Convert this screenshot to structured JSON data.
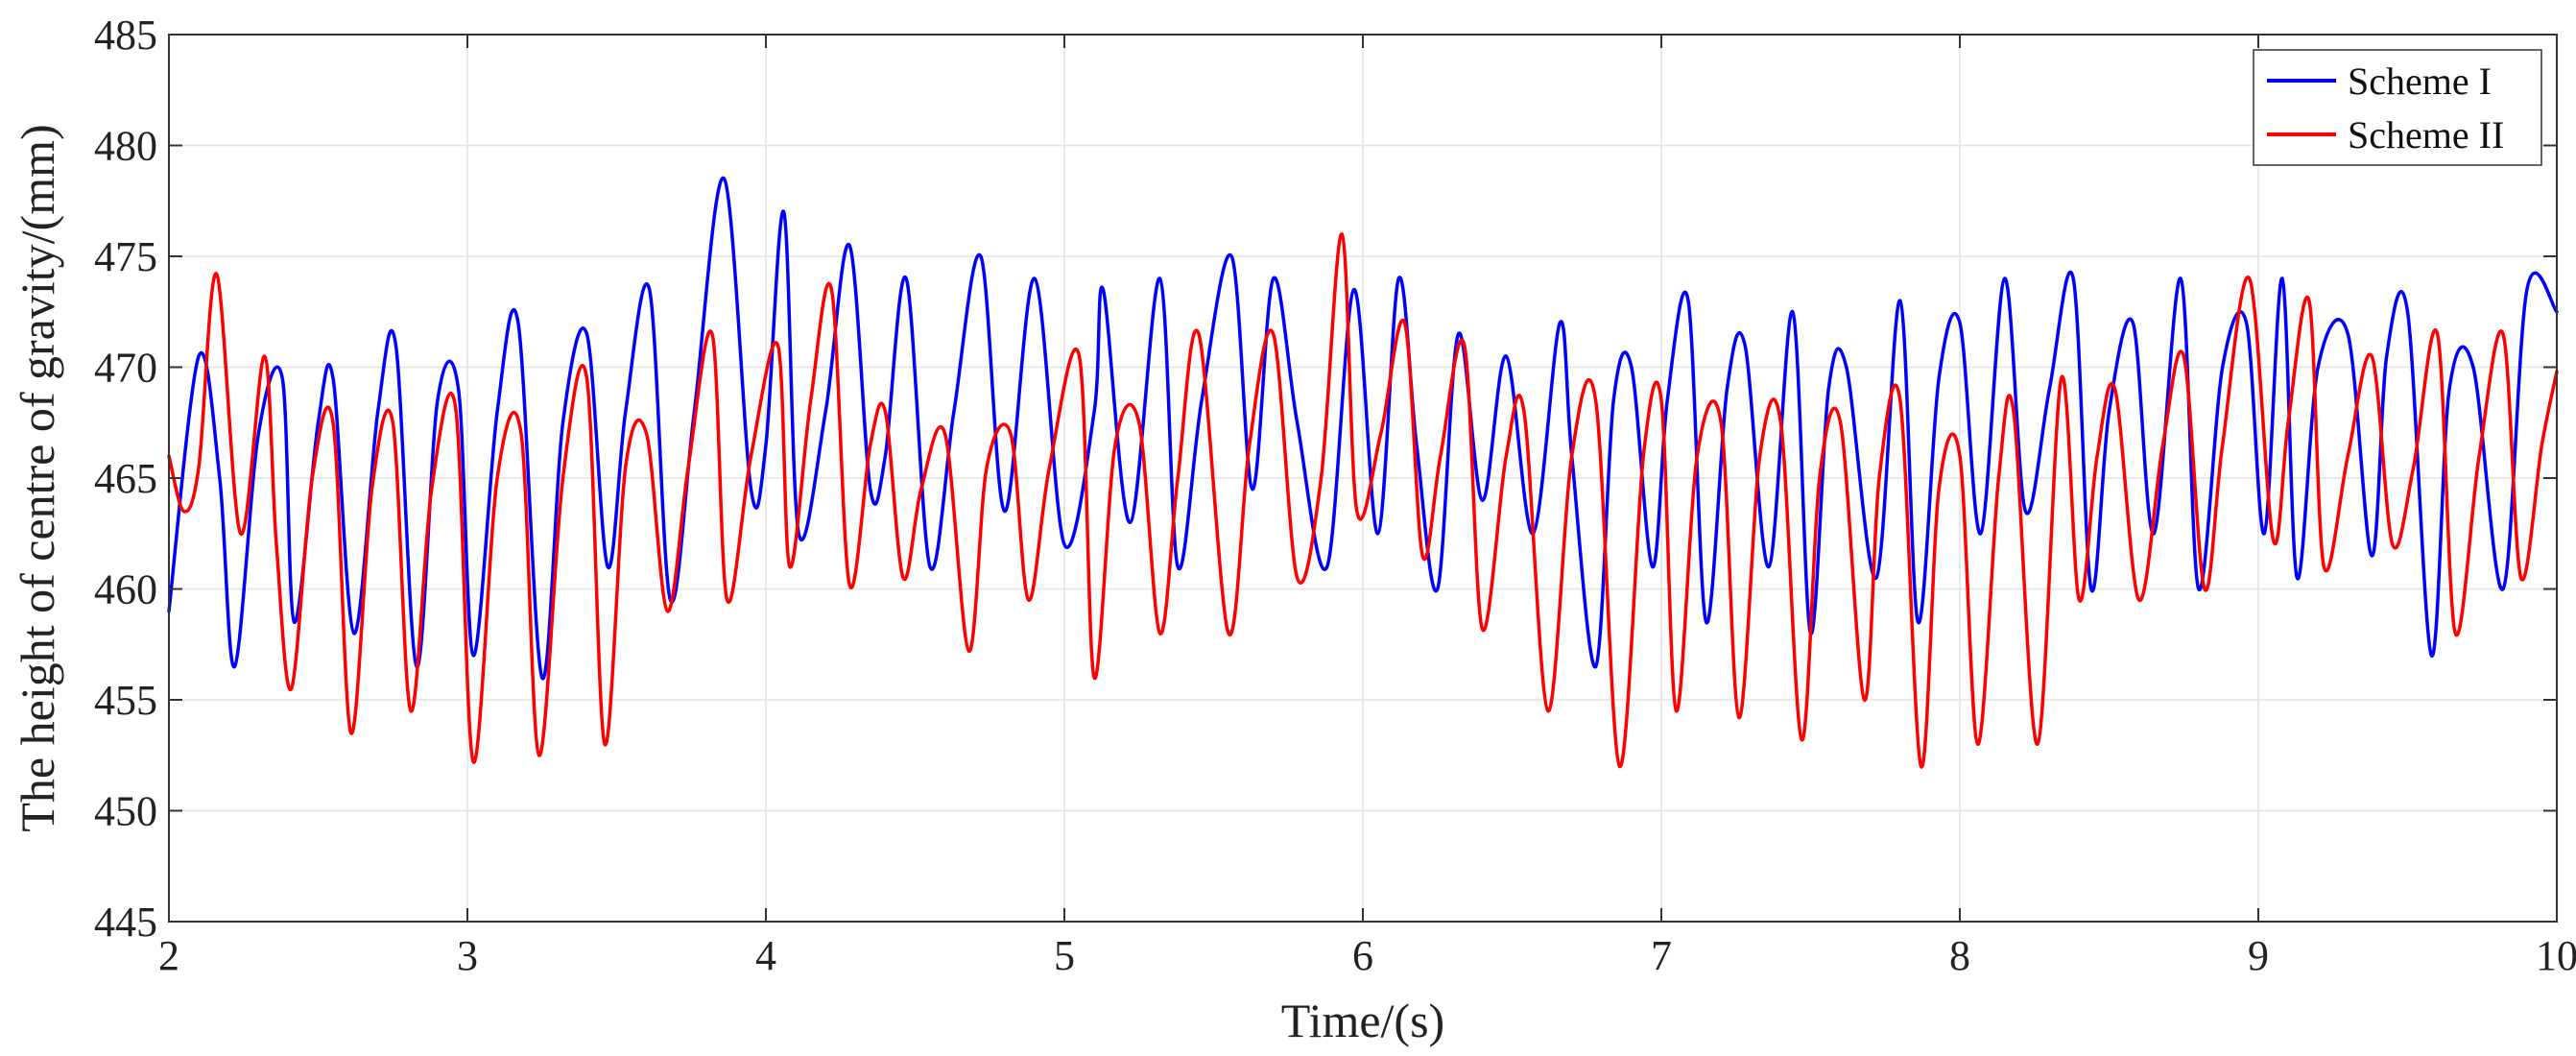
{
  "chart_data": {
    "type": "line",
    "title": "",
    "xlabel": "Time/(s)",
    "ylabel": "The height of centre of gravity/(mm)",
    "xlim": [
      2,
      10
    ],
    "ylim": [
      445,
      485
    ],
    "xticks": [
      2,
      3,
      4,
      5,
      6,
      7,
      8,
      9,
      10
    ],
    "yticks": [
      445,
      450,
      455,
      460,
      465,
      470,
      475,
      480,
      485
    ],
    "grid": true,
    "legend_position": "top-right",
    "colors": {
      "scheme_1": "#0000ff",
      "scheme_2": "#ff0000"
    },
    "series": [
      {
        "name": "Scheme I",
        "color": "#0000ff",
        "x": [
          2.0,
          2.1,
          2.17,
          2.22,
          2.3,
          2.38,
          2.42,
          2.5,
          2.55,
          2.62,
          2.7,
          2.76,
          2.83,
          2.9,
          2.97,
          3.02,
          3.1,
          3.17,
          3.25,
          3.32,
          3.4,
          3.47,
          3.53,
          3.61,
          3.68,
          3.76,
          3.86,
          3.95,
          4.0,
          4.06,
          4.11,
          4.2,
          4.28,
          4.35,
          4.4,
          4.47,
          4.55,
          4.63,
          4.72,
          4.8,
          4.9,
          5.0,
          5.1,
          5.13,
          5.22,
          5.32,
          5.38,
          5.46,
          5.56,
          5.63,
          5.7,
          5.78,
          5.88,
          5.97,
          6.05,
          6.12,
          6.18,
          6.25,
          6.32,
          6.4,
          6.48,
          6.57,
          6.66,
          6.7,
          6.78,
          6.84,
          6.9,
          6.97,
          7.02,
          7.09,
          7.15,
          7.22,
          7.28,
          7.36,
          7.44,
          7.5,
          7.56,
          7.62,
          7.72,
          7.8,
          7.86,
          7.93,
          8.0,
          8.07,
          8.15,
          8.22,
          8.3,
          8.38,
          8.44,
          8.5,
          8.58,
          8.65,
          8.74,
          8.8,
          8.88,
          8.96,
          9.02,
          9.08,
          9.13,
          9.2,
          9.3,
          9.38,
          9.43,
          9.5,
          9.58,
          9.64,
          9.72,
          9.82,
          9.9,
          10.0
        ],
        "values": [
          459.0,
          470.5,
          465.0,
          456.5,
          467.0,
          469.5,
          458.5,
          467.5,
          469.5,
          458.0,
          468.0,
          471.0,
          456.5,
          468.5,
          469.0,
          457.0,
          468.0,
          472.0,
          456.0,
          467.5,
          471.5,
          461.0,
          468.0,
          473.5,
          459.5,
          468.0,
          478.5,
          464.5,
          466.5,
          477.0,
          462.5,
          468.0,
          475.5,
          464.5,
          466.0,
          474.0,
          461.0,
          468.0,
          475.0,
          463.5,
          474.0,
          462.0,
          468.0,
          473.5,
          463.0,
          474.0,
          461.0,
          468.5,
          475.0,
          464.5,
          474.0,
          467.5,
          461.0,
          473.5,
          462.5,
          474.0,
          466.5,
          460.0,
          471.5,
          464.0,
          470.5,
          462.5,
          472.0,
          466.0,
          456.5,
          468.5,
          470.0,
          461.0,
          468.5,
          473.0,
          458.5,
          469.0,
          471.0,
          461.0,
          472.5,
          458.0,
          469.0,
          470.0,
          460.5,
          473.0,
          458.5,
          469.5,
          472.0,
          462.5,
          474.0,
          463.5,
          469.0,
          474.0,
          460.0,
          468.0,
          472.0,
          462.5,
          474.0,
          460.0,
          470.0,
          472.0,
          462.5,
          474.0,
          460.5,
          470.0,
          471.5,
          461.5,
          470.5,
          472.5,
          457.0,
          469.0,
          470.0,
          460.0,
          473.5,
          472.5
        ]
      },
      {
        "name": "Scheme II",
        "color": "#ff0000",
        "x": [
          2.0,
          2.05,
          2.1,
          2.16,
          2.24,
          2.32,
          2.36,
          2.41,
          2.48,
          2.55,
          2.61,
          2.68,
          2.75,
          2.81,
          2.88,
          2.96,
          3.02,
          3.1,
          3.18,
          3.24,
          3.32,
          3.4,
          3.46,
          3.53,
          3.6,
          3.67,
          3.74,
          3.82,
          3.87,
          3.95,
          4.04,
          4.08,
          4.15,
          4.22,
          4.28,
          4.35,
          4.4,
          4.46,
          4.52,
          4.6,
          4.68,
          4.74,
          4.82,
          4.88,
          4.95,
          5.05,
          5.1,
          5.17,
          5.25,
          5.32,
          5.38,
          5.45,
          5.55,
          5.62,
          5.7,
          5.78,
          5.86,
          5.93,
          5.98,
          6.06,
          6.14,
          6.2,
          6.26,
          6.34,
          6.4,
          6.48,
          6.54,
          6.62,
          6.7,
          6.78,
          6.86,
          6.94,
          7.0,
          7.05,
          7.12,
          7.2,
          7.26,
          7.33,
          7.4,
          7.47,
          7.53,
          7.6,
          7.68,
          7.73,
          7.8,
          7.87,
          7.93,
          8.0,
          8.06,
          8.13,
          8.18,
          8.26,
          8.34,
          8.4,
          8.46,
          8.52,
          8.6,
          8.68,
          8.75,
          8.82,
          8.88,
          8.97,
          9.05,
          9.1,
          9.17,
          9.22,
          9.3,
          9.38,
          9.45,
          9.52,
          9.6,
          9.66,
          9.74,
          9.82,
          9.88,
          9.95,
          10.0
        ],
        "values": [
          466.0,
          463.5,
          465.5,
          474.2,
          462.5,
          470.5,
          462.0,
          455.5,
          465.0,
          467.5,
          453.5,
          464.5,
          467.5,
          454.5,
          464.5,
          468.2,
          452.2,
          465.0,
          467.0,
          452.5,
          465.0,
          469.5,
          453.0,
          465.5,
          467.0,
          459.0,
          465.5,
          471.5,
          459.5,
          466.0,
          471.0,
          461.0,
          468.5,
          473.5,
          460.2,
          466.5,
          468.0,
          460.5,
          464.5,
          467.0,
          457.2,
          465.5,
          467.0,
          459.5,
          465.5,
          470.5,
          456.0,
          466.5,
          467.5,
          458.0,
          465.0,
          471.5,
          458.0,
          466.5,
          471.5,
          460.5,
          465.0,
          476.0,
          463.5,
          467.0,
          472.0,
          461.5,
          466.0,
          471.0,
          458.2,
          466.0,
          468.0,
          454.5,
          466.0,
          468.5,
          452.0,
          466.0,
          468.5,
          454.5,
          466.0,
          467.5,
          454.2,
          466.0,
          467.5,
          453.2,
          465.0,
          467.5,
          455.0,
          465.0,
          468.5,
          452.0,
          464.5,
          466.0,
          453.0,
          465.0,
          468.0,
          453.0,
          469.5,
          459.5,
          466.0,
          469.0,
          459.5,
          466.5,
          470.5,
          460.0,
          466.5,
          474.0,
          462.2,
          467.5,
          473.0,
          461.0,
          466.0,
          470.5,
          462.0,
          465.5,
          471.5,
          458.0,
          466.0,
          471.5,
          460.5,
          466.5,
          469.8
        ]
      }
    ]
  }
}
